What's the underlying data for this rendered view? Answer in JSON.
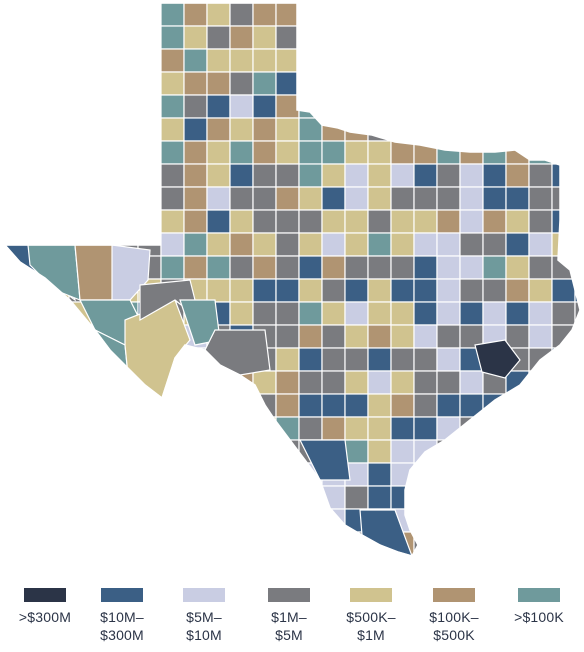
{
  "palette": {
    "over300M": "#2b3447",
    "10M_300M": "#3b5f85",
    "5M_10M": "#c9cde3",
    "1M_5M": "#7a7b7f",
    "500K_1M": "#d0c38f",
    "100K_500K": "#b09472",
    "under100K": "#6f9a9c",
    "border": "#ffffff"
  },
  "legend": [
    {
      "label": ">$300M",
      "color": "#2b3447"
    },
    {
      "label": "$10M–\n$300M",
      "color": "#3b5f85"
    },
    {
      "label": "$5M–\n$10M",
      "color": "#c9cde3"
    },
    {
      "label": "$1M–\n$5M",
      "color": "#7a7b7f"
    },
    {
      "label": "$500K–\n$1M",
      "color": "#d0c38f"
    },
    {
      "label": "$100K–\n$500K",
      "color": "#b09472"
    },
    {
      "label": ">$100K",
      "color": "#6f9a9c"
    }
  ]
}
